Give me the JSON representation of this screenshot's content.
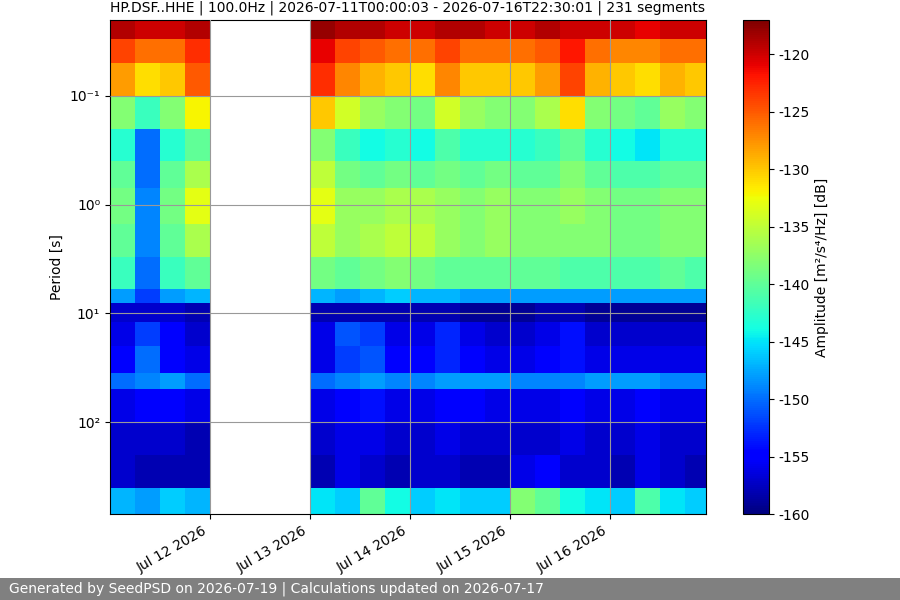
{
  "chart_data": {
    "type": "heatmap",
    "title": "HP.DSF..HHE | 100.0Hz | 2026-07-11T00:00:03 - 2026-07-16T22:30:01 | 231 segments",
    "y_label": "Period [s]",
    "footer": "Generated by SeedPSD on 2026-07-19 | Calculations updated on 2026-07-17",
    "log": "y",
    "grid": true,
    "xlim": [
      "2026-07-11T00:00",
      "2026-07-16T23:00"
    ],
    "xticks": [
      {
        "value": "2026-07-12",
        "label": "Jul 12 2026"
      },
      {
        "value": "2026-07-13",
        "label": "Jul 13 2026"
      },
      {
        "value": "2026-07-14",
        "label": "Jul 14 2026"
      },
      {
        "value": "2026-07-15",
        "label": "Jul 15 2026"
      },
      {
        "value": "2026-07-16",
        "label": "Jul 16 2026"
      }
    ],
    "ylim": [
      700,
      0.02
    ],
    "yticks": [
      {
        "value": 0.1,
        "label": "10⁻¹"
      },
      {
        "value": 1,
        "label": "10⁰"
      },
      {
        "value": 10,
        "label": "10¹"
      },
      {
        "value": 100,
        "label": "10²"
      }
    ],
    "x_edges": [
      "2026-07-11T00:00",
      "2026-07-11T06:00",
      "2026-07-11T12:00",
      "2026-07-11T18:00",
      "2026-07-12T00:00",
      "2026-07-12T06:00",
      "2026-07-12T12:00",
      "2026-07-12T18:00",
      "2026-07-13T00:00",
      "2026-07-13T06:00",
      "2026-07-13T12:00",
      "2026-07-13T18:00",
      "2026-07-14T00:00",
      "2026-07-14T06:00",
      "2026-07-14T12:00",
      "2026-07-14T18:00",
      "2026-07-15T00:00",
      "2026-07-15T06:00",
      "2026-07-15T12:00",
      "2026-07-15T18:00",
      "2026-07-16T00:00",
      "2026-07-16T06:00",
      "2026-07-16T12:00",
      "2026-07-16T18:00",
      "2026-07-16T23:00"
    ],
    "period_edges": [
      0.02,
      0.03,
      0.05,
      0.1,
      0.2,
      0.4,
      0.7,
      1.5,
      3,
      6,
      8,
      12,
      20,
      35,
      50,
      100,
      200,
      400,
      700
    ],
    "cells": [
      [
        -119,
        -120,
        -120,
        -119,
        null,
        null,
        null,
        null,
        -118,
        -119,
        -119,
        -120,
        -120,
        -119,
        -119,
        -120,
        -120,
        -119,
        -120,
        -120,
        -120,
        -121,
        -120,
        -120
      ],
      [
        -124,
        -126,
        -126,
        -123,
        null,
        null,
        null,
        null,
        -121,
        -124,
        -125,
        -126,
        -126,
        -124,
        -126,
        -126,
        -126,
        -125,
        -122,
        -126,
        -127,
        -127,
        -126,
        -126
      ],
      [
        -128,
        -131,
        -130,
        -125,
        null,
        null,
        null,
        null,
        -123,
        -127,
        -129,
        -130,
        -131,
        -127,
        -130,
        -130,
        -130,
        -128,
        -124,
        -129,
        -130,
        -131,
        -129,
        -130
      ],
      [
        -138,
        -142,
        -138,
        -132,
        null,
        null,
        null,
        null,
        -130,
        -134,
        -137,
        -138,
        -139,
        -134,
        -137,
        -138,
        -138,
        -136,
        -131,
        -138,
        -139,
        -140,
        -137,
        -138
      ],
      [
        -143,
        -150,
        -143,
        -140,
        null,
        null,
        null,
        null,
        -138,
        -142,
        -144,
        -143,
        -144,
        -141,
        -143,
        -143,
        -143,
        -142,
        -140,
        -143,
        -144,
        -145,
        -143,
        -143
      ],
      [
        -140,
        -150,
        -140,
        -136,
        null,
        null,
        null,
        null,
        -135,
        -139,
        -140,
        -139,
        -140,
        -139,
        -140,
        -139,
        -140,
        -140,
        -138,
        -140,
        -141,
        -141,
        -140,
        -140
      ],
      [
        -139,
        -149,
        -139,
        -133,
        null,
        null,
        null,
        null,
        -133,
        -137,
        -137,
        -136,
        -136,
        -137,
        -138,
        -137,
        -138,
        -138,
        -137,
        -138,
        -139,
        -139,
        -138,
        -138
      ],
      [
        -140,
        -149,
        -140,
        -136,
        null,
        null,
        null,
        null,
        -135,
        -137,
        -136,
        -135,
        -135,
        -137,
        -138,
        -137,
        -138,
        -138,
        -138,
        -138,
        -139,
        -139,
        -138,
        -138
      ],
      [
        -142,
        -150,
        -142,
        -140,
        null,
        null,
        null,
        null,
        -139,
        -140,
        -139,
        -138,
        -139,
        -140,
        -140,
        -140,
        -140,
        -140,
        -141,
        -141,
        -141,
        -141,
        -140,
        -141
      ],
      [
        -148,
        -152,
        -148,
        -147,
        null,
        null,
        null,
        null,
        -147,
        -148,
        -147,
        -146,
        -147,
        -147,
        -148,
        -148,
        -148,
        -148,
        -148,
        -148,
        -148,
        -148,
        -148,
        -148
      ],
      [
        -157,
        -157,
        -157,
        -158,
        null,
        null,
        null,
        null,
        -158,
        -158,
        -158,
        -158,
        -158,
        -158,
        -159,
        -159,
        -159,
        -158,
        -158,
        -159,
        -159,
        -159,
        -159,
        -159
      ],
      [
        -156,
        -152,
        -155,
        -157,
        null,
        null,
        null,
        null,
        -156,
        -151,
        -152,
        -156,
        -156,
        -153,
        -156,
        -157,
        -157,
        -156,
        -154,
        -157,
        -157,
        -157,
        -157,
        -157
      ],
      [
        -155,
        -150,
        -155,
        -156,
        null,
        null,
        null,
        null,
        -156,
        -152,
        -151,
        -155,
        -155,
        -153,
        -155,
        -156,
        -156,
        -155,
        -154,
        -156,
        -156,
        -156,
        -156,
        -156
      ],
      [
        -150,
        -149,
        -148,
        -150,
        null,
        null,
        null,
        null,
        -150,
        -149,
        -148,
        -149,
        -149,
        -148,
        -148,
        -148,
        -149,
        -149,
        -149,
        -148,
        -148,
        -148,
        -149,
        -149
      ],
      [
        -156,
        -155,
        -155,
        -156,
        null,
        null,
        null,
        null,
        -156,
        -155,
        -154,
        -156,
        -156,
        -155,
        -155,
        -156,
        -156,
        -156,
        -155,
        -156,
        -156,
        -155,
        -156,
        -156
      ],
      [
        -157,
        -157,
        -157,
        -158,
        null,
        null,
        null,
        null,
        -157,
        -156,
        -156,
        -157,
        -157,
        -156,
        -157,
        -157,
        -157,
        -157,
        -156,
        -157,
        -157,
        -156,
        -157,
        -157
      ],
      [
        -157,
        -158,
        -158,
        -158,
        null,
        null,
        null,
        null,
        -158,
        -156,
        -157,
        -158,
        -157,
        -157,
        -158,
        -158,
        -156,
        -155,
        -157,
        -157,
        -158,
        -156,
        -157,
        -158
      ],
      [
        -147,
        -148,
        -146,
        -147,
        null,
        null,
        null,
        null,
        -145,
        -146,
        -140,
        -144,
        -146,
        -145,
        -146,
        -146,
        -138,
        -140,
        -144,
        -145,
        -146,
        -141,
        -145,
        -146
      ]
    ],
    "colorbar": {
      "label": "Amplitude [m²/s⁴/Hz] [dB]",
      "range": [
        -160,
        -117
      ],
      "ticks": [
        -160,
        -155,
        -150,
        -145,
        -140,
        -135,
        -130,
        -125,
        -120
      ]
    }
  }
}
